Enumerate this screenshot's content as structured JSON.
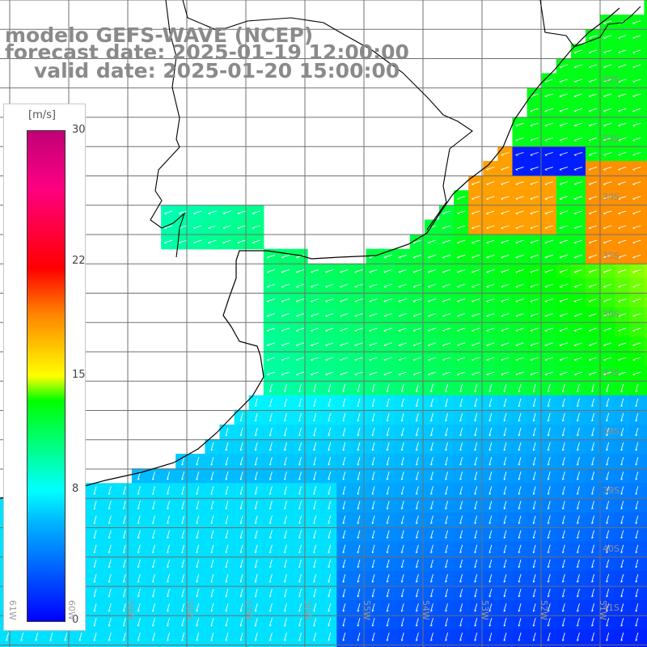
{
  "title": {
    "model": "modelo GEFS-WAVE (NCEP)",
    "forecast": "forecast date: 2025-01-19 12:00:00",
    "valid": "valid date: 2025-01-20 15:00:00"
  },
  "colorbar": {
    "unit": "[m/s]",
    "min": 0,
    "max": 30,
    "ticks": [
      "30",
      "22",
      "15",
      "8",
      "0"
    ],
    "tick_values": [
      30,
      22,
      15,
      8,
      0
    ],
    "stops": [
      "#0000ff",
      "#00b4ff",
      "#00ffff",
      "#00ff00",
      "#ffff00",
      "#ff8000",
      "#ff0000",
      "#ff0080",
      "#c00078"
    ]
  },
  "axes": {
    "lat_labels": [
      "32S",
      "33S",
      "34S",
      "35S",
      "36S",
      "37S",
      "38S",
      "39S",
      "40S",
      "41S"
    ],
    "lat_values": [
      32,
      33,
      34,
      35,
      36,
      37,
      38,
      39,
      40,
      41
    ],
    "lon_labels": [
      "61W",
      "60W",
      "59W",
      "58W",
      "57W",
      "56W",
      "55W",
      "54W",
      "53W",
      "52W",
      "51W"
    ],
    "lon_values": [
      61,
      60,
      59,
      58,
      57,
      56,
      55,
      54,
      53,
      52,
      51
    ]
  },
  "colors": {
    "land": "#ffffff",
    "grid": "#707070",
    "coast": "#000000",
    "arrows": "#ffffff",
    "title": "#8a8a8a"
  }
}
